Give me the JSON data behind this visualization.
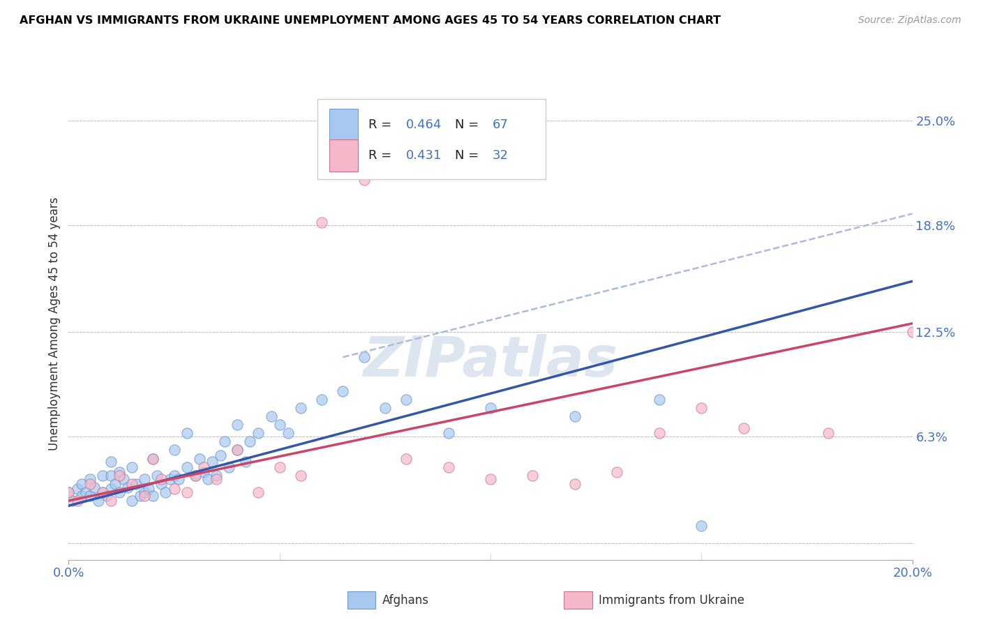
{
  "title": "AFGHAN VS IMMIGRANTS FROM UKRAINE UNEMPLOYMENT AMONG AGES 45 TO 54 YEARS CORRELATION CHART",
  "source": "Source: ZipAtlas.com",
  "ylabel": "Unemployment Among Ages 45 to 54 years",
  "xlim": [
    0.0,
    0.2
  ],
  "ylim": [
    -0.01,
    0.27
  ],
  "plot_ylim": [
    -0.01,
    0.27
  ],
  "ytick_vals": [
    0.063,
    0.125,
    0.188,
    0.25
  ],
  "ytick_labels": [
    "6.3%",
    "12.5%",
    "18.8%",
    "25.0%"
  ],
  "grid_yticks": [
    0.0,
    0.063,
    0.125,
    0.188,
    0.25
  ],
  "xtick_vals": [
    0.0,
    0.2
  ],
  "xtick_labels": [
    "0.0%",
    "20.0%"
  ],
  "legend_entries": [
    {
      "label": "Afghans",
      "color": "#a8c8f0",
      "edge": "#7099cc",
      "R": "0.464",
      "N": "67"
    },
    {
      "label": "Immigrants from Ukraine",
      "color": "#f5b8c8",
      "edge": "#cc7090",
      "R": "0.431",
      "N": "32"
    }
  ],
  "watermark": "ZIPatlas",
  "background_color": "#ffffff",
  "grid_color": "#bbbbbb",
  "R_color": "#4472c4",
  "N_color": "#4472c4",
  "title_color": "#000000",
  "ylabel_color": "#333333",
  "ytick_label_color": "#4472c4",
  "afghan_color": "#a8c8f0",
  "afghan_edge_color": "#6090cc",
  "afghan_trendline_color": "#3355aa",
  "ukraine_color": "#f5b8c8",
  "ukraine_edge_color": "#cc7090",
  "ukraine_trendline_color": "#cc4466",
  "afghan_dashed_color": "#aabbdd",
  "afghan_scatter_x": [
    0.0,
    0.001,
    0.002,
    0.003,
    0.003,
    0.004,
    0.005,
    0.005,
    0.006,
    0.007,
    0.008,
    0.008,
    0.009,
    0.01,
    0.01,
    0.01,
    0.011,
    0.012,
    0.012,
    0.013,
    0.014,
    0.015,
    0.015,
    0.016,
    0.017,
    0.018,
    0.018,
    0.019,
    0.02,
    0.02,
    0.021,
    0.022,
    0.023,
    0.024,
    0.025,
    0.025,
    0.026,
    0.028,
    0.028,
    0.03,
    0.031,
    0.032,
    0.033,
    0.034,
    0.035,
    0.036,
    0.037,
    0.038,
    0.04,
    0.04,
    0.042,
    0.043,
    0.045,
    0.048,
    0.05,
    0.052,
    0.055,
    0.06,
    0.065,
    0.07,
    0.075,
    0.08,
    0.09,
    0.1,
    0.12,
    0.14,
    0.15
  ],
  "afghan_scatter_y": [
    0.03,
    0.025,
    0.032,
    0.028,
    0.035,
    0.03,
    0.028,
    0.038,
    0.033,
    0.025,
    0.04,
    0.03,
    0.028,
    0.032,
    0.04,
    0.048,
    0.035,
    0.03,
    0.042,
    0.038,
    0.033,
    0.025,
    0.045,
    0.035,
    0.028,
    0.03,
    0.038,
    0.032,
    0.028,
    0.05,
    0.04,
    0.035,
    0.03,
    0.038,
    0.04,
    0.055,
    0.038,
    0.045,
    0.065,
    0.04,
    0.05,
    0.042,
    0.038,
    0.048,
    0.04,
    0.052,
    0.06,
    0.045,
    0.055,
    0.07,
    0.048,
    0.06,
    0.065,
    0.075,
    0.07,
    0.065,
    0.08,
    0.085,
    0.09,
    0.11,
    0.08,
    0.085,
    0.065,
    0.08,
    0.075,
    0.085,
    0.01
  ],
  "ukraine_scatter_x": [
    0.0,
    0.002,
    0.005,
    0.008,
    0.01,
    0.012,
    0.015,
    0.018,
    0.02,
    0.022,
    0.025,
    0.028,
    0.03,
    0.032,
    0.035,
    0.04,
    0.045,
    0.05,
    0.055,
    0.06,
    0.07,
    0.08,
    0.09,
    0.1,
    0.11,
    0.12,
    0.13,
    0.14,
    0.15,
    0.16,
    0.18,
    0.2
  ],
  "ukraine_scatter_y": [
    0.03,
    0.025,
    0.035,
    0.03,
    0.025,
    0.04,
    0.035,
    0.028,
    0.05,
    0.038,
    0.032,
    0.03,
    0.04,
    0.045,
    0.038,
    0.055,
    0.03,
    0.045,
    0.04,
    0.19,
    0.215,
    0.05,
    0.045,
    0.038,
    0.04,
    0.035,
    0.042,
    0.065,
    0.08,
    0.068,
    0.065,
    0.125
  ],
  "afghan_trend_x": [
    0.0,
    0.2
  ],
  "afghan_trend_y": [
    0.022,
    0.155
  ],
  "afghan_dashed_trend_x": [
    0.065,
    0.2
  ],
  "afghan_dashed_trend_y": [
    0.11,
    0.195
  ],
  "ukraine_trend_x": [
    0.0,
    0.2
  ],
  "ukraine_trend_y": [
    0.025,
    0.13
  ]
}
